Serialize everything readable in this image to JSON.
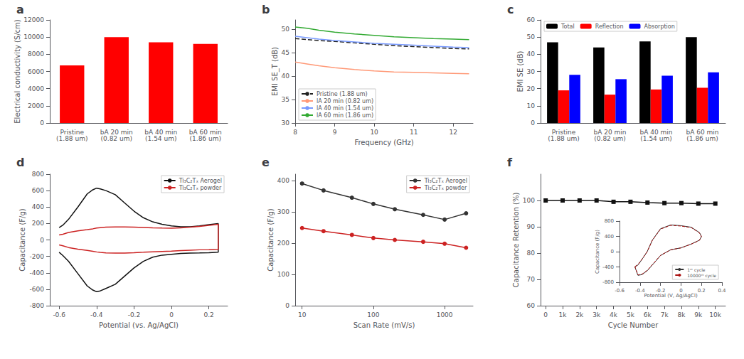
{
  "chart_data": [
    {
      "type": "bar",
      "title": "a",
      "categories": [
        "Pristine\n(1.88 um)",
        "bA 20 min\n(0.82 um)",
        "bA 40 min\n(1.54 um)",
        "bA 60 min\n(1.86 um)"
      ],
      "values": [
        6700,
        10000,
        9400,
        9200
      ],
      "color": "#ff0000",
      "ylabel": "Electrical conductivity (S/cm)",
      "ylim": [
        0,
        12000
      ],
      "yticks": [
        0,
        2000,
        4000,
        6000,
        8000,
        10000,
        12000
      ],
      "grid": false
    },
    {
      "type": "line",
      "title": "b",
      "x": [
        8.0,
        8.3,
        8.6,
        9.0,
        9.5,
        10.0,
        10.5,
        11.0,
        11.5,
        12.0,
        12.4
      ],
      "series": [
        {
          "name": "Pristine (1.88 um)",
          "color": "#222222",
          "line_style": "dashed",
          "values": [
            48.0,
            47.8,
            47.6,
            47.4,
            47.1,
            46.8,
            46.5,
            46.3,
            46.1,
            45.9,
            45.8
          ]
        },
        {
          "name": "lA 20 min (0.82 um)",
          "color": "#ff9977",
          "line_style": "solid",
          "values": [
            43.0,
            42.6,
            42.2,
            41.8,
            41.4,
            41.1,
            40.9,
            40.8,
            40.7,
            40.6,
            40.5
          ]
        },
        {
          "name": "lA 40 min (1.54 um)",
          "color": "#7799ff",
          "line_style": "solid",
          "values": [
            48.5,
            48.2,
            47.9,
            47.6,
            47.3,
            47.0,
            46.8,
            46.6,
            46.4,
            46.2,
            46.1
          ]
        },
        {
          "name": "lA 60 min (1.86 um)",
          "color": "#33aa33",
          "line_style": "solid",
          "values": [
            50.5,
            50.2,
            49.8,
            49.4,
            49.0,
            48.7,
            48.4,
            48.2,
            48.0,
            47.9,
            47.8
          ]
        }
      ],
      "xlabel": "Frequency (GHz)",
      "ylabel": "EMI SE_T (dB)",
      "xlim": [
        8,
        12.5
      ],
      "xticks": [
        8,
        9,
        10,
        11,
        12
      ],
      "ylim": [
        30,
        52
      ],
      "yticks": [
        30,
        35,
        40,
        45,
        50
      ],
      "legend": "lower left",
      "grid": false
    },
    {
      "type": "bar",
      "title": "c",
      "categories": [
        "Pristine\n(1.88 um)",
        "bA 20 min\n(0.82 um)",
        "bA 40 min\n(1.54 um)",
        "bA 60 min\n(1.86 um)"
      ],
      "series": [
        {
          "name": "Total",
          "color": "#000000",
          "values": [
            47,
            44,
            47.5,
            50
          ]
        },
        {
          "name": "Reflection",
          "color": "#ff0000",
          "values": [
            19,
            16.5,
            19.5,
            20.5
          ]
        },
        {
          "name": "Absorption",
          "color": "#0000ff",
          "values": [
            28,
            25.5,
            27.5,
            29.5
          ]
        }
      ],
      "ylabel": "EMI SE (dB)",
      "ylim": [
        0,
        60
      ],
      "yticks": [
        0,
        10,
        20,
        30,
        40,
        50,
        60
      ],
      "legend": "upper left",
      "grid": false
    },
    {
      "type": "line",
      "title": "d",
      "x": [
        -0.6,
        -0.58,
        -0.55,
        -0.5,
        -0.45,
        -0.42,
        -0.4,
        -0.38,
        -0.35,
        -0.3,
        -0.25,
        -0.2,
        -0.15,
        -0.1,
        -0.05,
        0,
        0.05,
        0.1,
        0.15,
        0.2,
        0.25,
        0.25,
        0.2,
        0.15,
        0.1,
        0.05,
        0,
        -0.05,
        -0.1,
        -0.15,
        -0.2,
        -0.25,
        -0.3,
        -0.35,
        -0.38,
        -0.4,
        -0.42,
        -0.45,
        -0.5,
        -0.55,
        -0.58,
        -0.6
      ],
      "series": [
        {
          "name": "Ti₃C₂Tₓ Aerogel",
          "color": "#111111",
          "values": [
            150,
            180,
            250,
            400,
            560,
            610,
            630,
            620,
            600,
            550,
            450,
            350,
            270,
            220,
            190,
            170,
            160,
            160,
            170,
            185,
            200,
            -150,
            -155,
            -158,
            -160,
            -165,
            -175,
            -185,
            -210,
            -260,
            -340,
            -440,
            -540,
            -590,
            -620,
            -630,
            -610,
            -560,
            -410,
            -260,
            -190,
            -150
          ]
        },
        {
          "name": "Ti₃C₂Tₓ powder",
          "color": "#cc2222",
          "values": [
            60,
            70,
            90,
            110,
            125,
            135,
            145,
            150,
            155,
            158,
            158,
            155,
            152,
            148,
            145,
            143,
            148,
            155,
            165,
            178,
            190,
            -115,
            -118,
            -120,
            -125,
            -130,
            -137,
            -140,
            -144,
            -150,
            -155,
            -159,
            -160,
            -157,
            -152,
            -146,
            -138,
            -128,
            -112,
            -92,
            -72,
            -60
          ]
        }
      ],
      "xlabel": "Potential (vs. Ag/AgCl)",
      "ylabel": "Capacitance (F/g)",
      "xlim": [
        -0.65,
        0.3
      ],
      "xticks": [
        -0.6,
        -0.4,
        -0.2,
        0,
        0.2
      ],
      "ylim": [
        -800,
        800
      ],
      "yticks": [
        -800,
        -600,
        -400,
        -200,
        0,
        200,
        400,
        600,
        800
      ],
      "legend": "upper right",
      "grid": false
    },
    {
      "type": "line",
      "title": "e",
      "log": "x",
      "x": [
        10,
        20,
        50,
        100,
        200,
        500,
        1000,
        2000
      ],
      "series": [
        {
          "name": "Ti₃C₂Tₓ Aerogel",
          "color": "#333333",
          "marker": "circle",
          "values": [
            390,
            368,
            345,
            325,
            308,
            290,
            275,
            295
          ]
        },
        {
          "name": "Ti₃C₂Tₓ powder",
          "color": "#cc2222",
          "marker": "circle",
          "values": [
            248,
            238,
            226,
            216,
            210,
            204,
            198,
            185
          ]
        }
      ],
      "xlabel": "Scan Rate (mV/s)",
      "ylabel": "Capacitance (F/g)",
      "xlim": [
        8,
        2500
      ],
      "xticks": [
        10,
        100,
        1000
      ],
      "ylim": [
        0,
        420
      ],
      "yticks": [
        0,
        100,
        200,
        300,
        400
      ],
      "legend": "upper right",
      "grid": false
    },
    {
      "type": "line",
      "title": "f",
      "x": [
        0,
        1000,
        2000,
        3000,
        4000,
        5000,
        6000,
        7000,
        8000,
        9000,
        10000
      ],
      "values": [
        100,
        100,
        100,
        100,
        99.5,
        99.5,
        99.2,
        99.0,
        99.0,
        98.8,
        98.8
      ],
      "color": "#111111",
      "marker": "square",
      "xlabel": "Cycle Number",
      "ylabel": "Capacitance Retention (%)",
      "xlim": [
        -300,
        10600
      ],
      "xticks": [
        0,
        {
          "value": 1000,
          "label": "1k"
        },
        {
          "value": 2000,
          "label": "2k"
        },
        {
          "value": 3000,
          "label": "3k"
        },
        {
          "value": 4000,
          "label": "4k"
        },
        {
          "value": 5000,
          "label": "5k"
        },
        {
          "value": 6000,
          "label": "6k"
        },
        {
          "value": 7000,
          "label": "7k"
        },
        {
          "value": 8000,
          "label": "8k"
        },
        {
          "value": 9000,
          "label": "9k"
        },
        {
          "value": 10000,
          "label": "10k"
        }
      ],
      "ylim": [
        60,
        110
      ],
      "yticks": [
        60,
        70,
        80,
        90,
        100
      ],
      "grid": false
    },
    {
      "type": "line",
      "x": [
        -0.45,
        -0.42,
        -0.38,
        -0.33,
        -0.28,
        -0.2,
        -0.1,
        0.0,
        0.1,
        0.18,
        0.2,
        0.18,
        0.1,
        0.0,
        -0.1,
        -0.2,
        -0.28,
        -0.33,
        -0.38,
        -0.42,
        -0.45
      ],
      "series": [
        {
          "name": "1ˢᵗ cycle",
          "color": "#333333",
          "line_style": "solid",
          "values": [
            -400,
            -350,
            -200,
            0,
            300,
            600,
            700,
            680,
            640,
            500,
            400,
            300,
            200,
            100,
            50,
            -100,
            -350,
            -500,
            -600,
            -620,
            -400
          ]
        },
        {
          "name": "10000ᵗʰ cycle",
          "color": "#aa1111",
          "line_style": "dashed",
          "values": [
            -390,
            -340,
            -195,
            0,
            295,
            590,
            690,
            670,
            630,
            492,
            392,
            295,
            196,
            98,
            49,
            -98,
            -343,
            -490,
            -588,
            -608,
            -390
          ]
        }
      ],
      "xlabel": "Potential (V, Ag/AgCl)",
      "ylabel": "Capacitance (F/g)",
      "xlim": [
        -0.6,
        0.4
      ],
      "xticks": [
        -0.6,
        -0.4,
        -0.2,
        0,
        0.2,
        0.4
      ],
      "ylim": [
        -800,
        800
      ],
      "yticks": [
        -800,
        -400,
        0,
        400,
        800
      ],
      "legend": "lower right",
      "grid": false
    }
  ]
}
